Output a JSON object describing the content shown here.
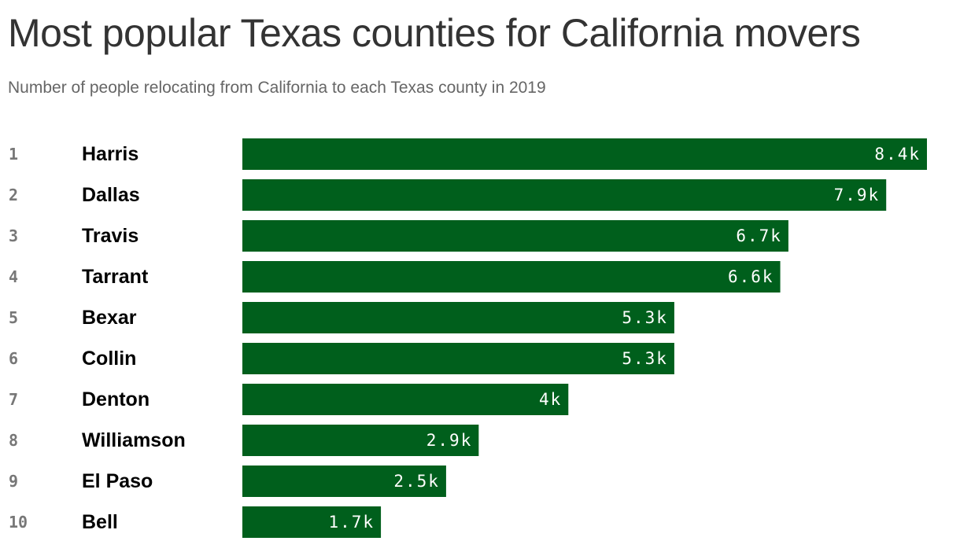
{
  "title": "Most popular Texas counties for California movers",
  "subtitle": "Number of people relocating from California to each Texas county in 2019",
  "colors": {
    "bar": "#005f1c",
    "value_text": "#ffffff",
    "rank_text": "#777777",
    "county_text": "#000000"
  },
  "chart_data": {
    "type": "bar",
    "orientation": "horizontal",
    "title": "Most popular Texas counties for California movers",
    "subtitle": "Number of people relocating from California to each Texas county in 2019",
    "ranks": [
      "1",
      "2",
      "3",
      "4",
      "5",
      "6",
      "7",
      "8",
      "9",
      "10"
    ],
    "categories": [
      "Harris",
      "Dallas",
      "Travis",
      "Tarrant",
      "Bexar",
      "Collin",
      "Denton",
      "Williamson",
      "El Paso",
      "Bell"
    ],
    "values": [
      8400,
      7900,
      6700,
      6600,
      5300,
      5300,
      4000,
      2900,
      2500,
      1700
    ],
    "value_labels": [
      "8.4k",
      "7.9k",
      "6.7k",
      "6.6k",
      "5.3k",
      "5.3k",
      "4k",
      "2.9k",
      "2.5k",
      "1.7k"
    ],
    "xlim": [
      0,
      8400
    ],
    "grid": false,
    "legend": "none"
  }
}
